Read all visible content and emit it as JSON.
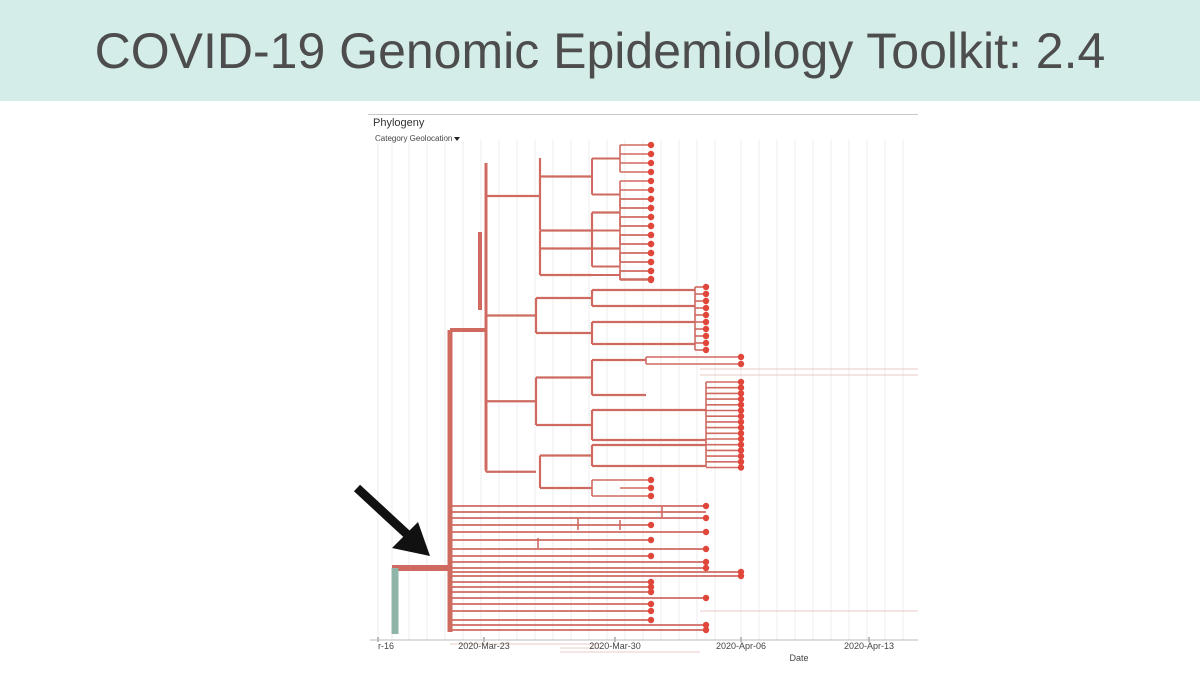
{
  "slide": {
    "title": "COVID-19 Genomic Epidemiology Toolkit: 2.4"
  },
  "panel": {
    "title": "Phylogeny",
    "dropdown_label": "Category Geolocation"
  },
  "axis": {
    "title": "Date",
    "ticks": [
      "r-16",
      "2020-Mar-23",
      "2020-Mar-30",
      "2020-Apr-06",
      "2020-Apr-13"
    ]
  },
  "colors": {
    "banner": "#d4ede9",
    "branch": "#cf6a60",
    "tip": "#e0473a",
    "root_branch": "#8fb5a8",
    "arrow": "#111111"
  },
  "icons": [
    "chevron-down-icon",
    "arrow-icon"
  ]
}
